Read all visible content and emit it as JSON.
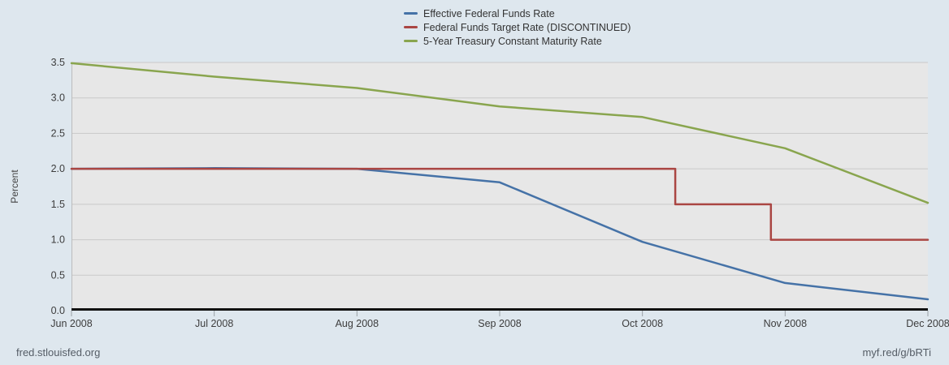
{
  "page": {
    "background": "#dee7ee",
    "plot_background": "#e7e7e7",
    "gridline_color": "#c9c9c9",
    "axis_color": "#111111",
    "tick_color": "#9aa0a6"
  },
  "footer": {
    "left_link": "fred.stlouisfed.org",
    "right_link": "myf.red/g/bRTi"
  },
  "chart_data": {
    "type": "line",
    "title": "",
    "ylabel": "Percent",
    "xlabel": "",
    "legend_position": "top-center",
    "grid": true,
    "x_encoding": "months since Jun 2008 (0 = Jun 2008, 6 = Dec 2008)",
    "xlim": [
      0,
      6
    ],
    "ylim": [
      0,
      3.5
    ],
    "x_ticks": [
      "Jun 2008",
      "Jul 2008",
      "Aug 2008",
      "Sep 2008",
      "Oct 2008",
      "Nov 2008",
      "Dec 2008"
    ],
    "y_ticks": [
      "0.0",
      "0.5",
      "1.0",
      "1.5",
      "2.0",
      "2.5",
      "3.0",
      "3.5"
    ],
    "series": [
      {
        "name": "Effective Federal Funds Rate",
        "color": "#4572a7",
        "x": [
          0,
          1,
          2,
          3,
          4,
          5,
          6
        ],
        "y": [
          2.0,
          2.01,
          2.0,
          1.81,
          0.97,
          0.39,
          0.16
        ]
      },
      {
        "name": "Federal Funds Target Rate (DISCONTINUED)",
        "color": "#aa4643",
        "x": [
          0,
          4.23,
          4.23,
          4.9,
          4.9,
          6
        ],
        "y": [
          2.0,
          2.0,
          1.5,
          1.5,
          1.0,
          1.0
        ]
      },
      {
        "name": "5-Year Treasury Constant Maturity Rate",
        "color": "#89a54e",
        "x": [
          0,
          1,
          2,
          3,
          4,
          5,
          6
        ],
        "y": [
          3.49,
          3.3,
          3.14,
          2.88,
          2.73,
          2.29,
          1.52
        ]
      }
    ]
  }
}
